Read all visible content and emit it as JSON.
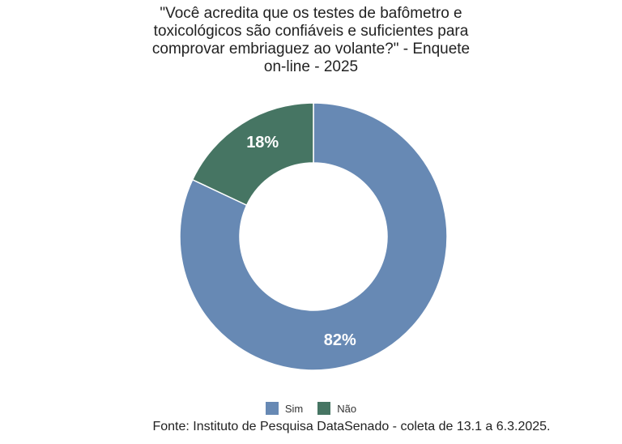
{
  "chart_data": {
    "type": "pie",
    "title_lines": [
      "\"Você acredita que os testes de bafômetro e",
      "toxicológicos são confiáveis e suficientes para",
      "comprovar embriaguez ao volante?\" - Enquete",
      "on-line - 2025"
    ],
    "categories": [
      "Sim",
      "Não"
    ],
    "values": [
      82,
      18
    ],
    "labels": [
      "82%",
      "18%"
    ],
    "colors": [
      "#6789b4",
      "#467563"
    ],
    "legend_position": "bottom",
    "donut": true
  },
  "source": "Fonte: Instituto de Pesquisa DataSenado - coleta de 13.1 a 6.3.2025."
}
